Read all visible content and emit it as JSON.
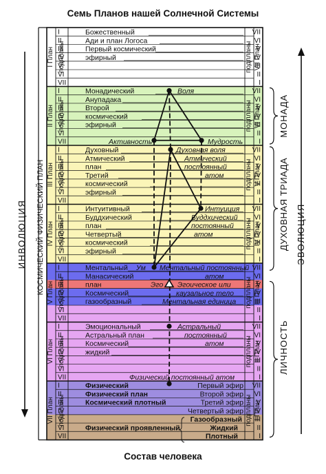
{
  "title": "Семь Планов нашей Солнечной Системы",
  "footer": "Состав человека",
  "involution": "ИНВОЛЮЦИЯ",
  "evolution": "ЭВОЛЮЦИЯ",
  "cosmic_physical_plane": "КОСМИЧЕСКИЙ ФИЗИЧЕСКИЙ ПЛАН",
  "subplanes_word": "подпланы",
  "roman": [
    "I",
    "II",
    "III",
    "IV",
    "V",
    "VI",
    "VII"
  ],
  "planes": [
    {
      "left": "I План",
      "right": "VII План",
      "color": "#ffffff",
      "lines": [
        "Божественный",
        "Ади и план Логоса",
        "Первый космический",
        "эфирный"
      ]
    },
    {
      "left": "II План",
      "right": "VI План",
      "color": "#d8f3bc",
      "lines": [
        "Монадический",
        "Анупадака",
        "Второй",
        "космический",
        "эфирный"
      ]
    },
    {
      "left": "III План",
      "right": "V План",
      "color": "#fbf5b8",
      "lines": [
        "Духовный",
        "Атмический",
        "план",
        "Третий",
        "космический",
        "эфирный"
      ]
    },
    {
      "left": "IV План",
      "right": "IV План",
      "color": "#fbf5b8",
      "lines": [
        "Интуитивный",
        "Буддхический",
        "план",
        "Четвертый",
        "космический",
        "эфирный"
      ]
    },
    {
      "left": "V План",
      "right": "III План",
      "color": "#6c6cef",
      "lines": [
        "Ментальный",
        "Манасический",
        "план",
        "Космический",
        "газообразный"
      ]
    },
    {
      "left": "VI План",
      "right": "II План",
      "color": "#e6a6f2",
      "lines": [
        "Эмоциональный",
        "Астральный план",
        "Космический",
        "жидкий"
      ]
    },
    {
      "left": "VII План",
      "right": "I План",
      "color": "#9e8de0",
      "lines": [
        "Физический",
        "Физический план",
        "Космический плотный",
        "",
        "",
        "Физический проявленный"
      ]
    }
  ],
  "annotations": {
    "volya": "Воля",
    "aktivnost": "Активность",
    "mudrost": "Мудрость",
    "dukhovnaya_volya": "Духовная воля",
    "atmicheskiy": "Атмический",
    "postoyanniy": "постоянный",
    "atom": "атом",
    "intuitsiya": "Интуиция",
    "buddkhicheskiy": "Буддхический",
    "um": "Ум",
    "mentalniy_postoyanniy": "Ментальный постоянный",
    "ego": "Эго",
    "egoicheskoe": "Эгоическое или",
    "kauzalnoe": "каузальное тело",
    "mentalnaya_edinitsa": "Ментальная единица",
    "astralniy": "Астральный",
    "fizicheskiy_postoyanniy_atom": "Физический постоянный атом",
    "perviy_efir": "Первый эфир",
    "vtoroy_efir": "Второй эфир",
    "tretiy_efir": "Третий эфир",
    "chetvertiy_efir": "Четвертый эфир",
    "gazoobrazniy": "Газообразный",
    "zhidkiy": "Жидкий",
    "plotniy": "Плотный"
  },
  "groups": {
    "monada": "МОНАДА",
    "dukhovnaya_triada": "ДУХОВНАЯ ТРИАДА",
    "lichnost": "ЛИЧНОСТЬ"
  },
  "colors": {
    "red_row": "#ee7777",
    "brown_row": "#c9ab8a",
    "lavender_row": "#c9c2ee"
  }
}
